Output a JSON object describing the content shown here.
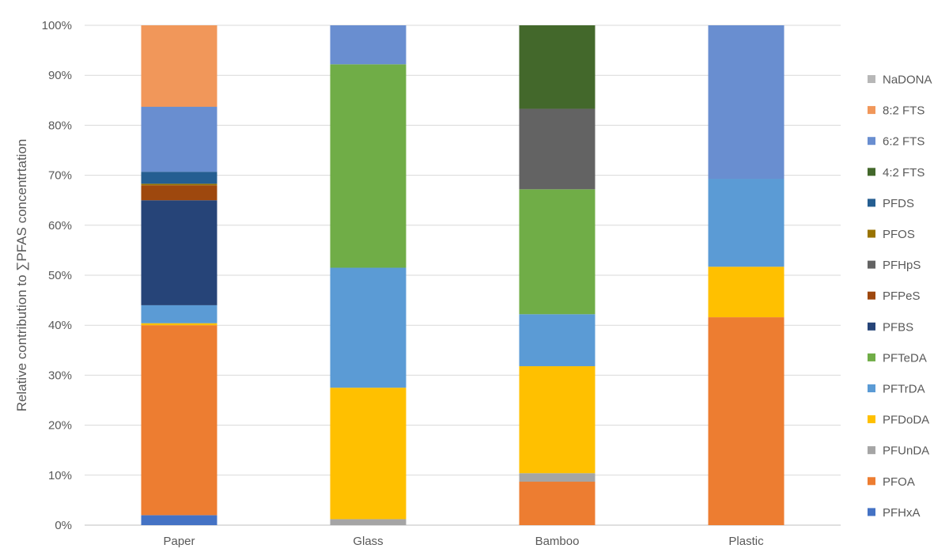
{
  "chart_data": {
    "type": "bar",
    "stacked": true,
    "ylabel": "Relative contribution to ∑PFAS concentrtation",
    "xlabel": "",
    "ylim": [
      0,
      100
    ],
    "y_ticks": [
      "0%",
      "10%",
      "20%",
      "30%",
      "40%",
      "50%",
      "60%",
      "70%",
      "80%",
      "90%",
      "100%"
    ],
    "grid": true,
    "legend_position": "right",
    "categories": [
      "Paper",
      "Glass",
      "Bamboo",
      "Plastic"
    ],
    "series": [
      {
        "name": "PFHxA",
        "color": "#4472C4",
        "values": [
          2.0,
          0,
          0,
          0
        ]
      },
      {
        "name": "PFOA",
        "color": "#ED7D31",
        "values": [
          38.0,
          0,
          8.7,
          41.6
        ]
      },
      {
        "name": "PFUnDA",
        "color": "#A5A5A5",
        "values": [
          0,
          1.2,
          1.7,
          0
        ]
      },
      {
        "name": "PFDoDA",
        "color": "#FFC000",
        "values": [
          0.4,
          26.3,
          21.4,
          10.1
        ]
      },
      {
        "name": "PFTrDA",
        "color": "#5B9BD5",
        "values": [
          3.6,
          24.0,
          10.4,
          17.6
        ]
      },
      {
        "name": "PFTeDA",
        "color": "#70AD47",
        "values": [
          0,
          40.7,
          25.0,
          0
        ]
      },
      {
        "name": "PFBS",
        "color": "#264478",
        "values": [
          21.0,
          0,
          0,
          0
        ]
      },
      {
        "name": "PFPeS",
        "color": "#9E480E",
        "values": [
          3.0,
          0,
          0,
          0
        ]
      },
      {
        "name": "PFHpS",
        "color": "#636363",
        "values": [
          0,
          0,
          16.1,
          0
        ]
      },
      {
        "name": "PFOS",
        "color": "#997300",
        "values": [
          0.3,
          0,
          0,
          0
        ]
      },
      {
        "name": "PFDS",
        "color": "#255E91",
        "values": [
          2.4,
          0,
          0,
          0
        ]
      },
      {
        "name": "4:2 FTS",
        "color": "#43682B",
        "values": [
          0,
          0,
          16.7,
          0
        ]
      },
      {
        "name": "6:2 FTS",
        "color": "#698ED0",
        "values": [
          13.0,
          7.8,
          0,
          30.7
        ]
      },
      {
        "name": "8:2 FTS",
        "color": "#F1975A",
        "values": [
          16.3,
          0,
          0,
          0
        ]
      },
      {
        "name": "NaDONA",
        "color": "#B7B7B7",
        "values": [
          0,
          0,
          0,
          0
        ]
      }
    ]
  }
}
